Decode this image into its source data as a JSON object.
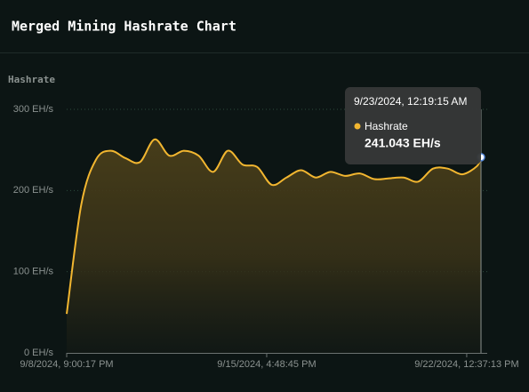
{
  "chart_data": {
    "type": "area",
    "title": "Merged Mining Hashrate Chart",
    "ylabel": "Hashrate",
    "x": [
      "2024-09-08T21:00:17",
      "2024-09-09T09:00:17",
      "2024-09-09T21:00:17",
      "2024-09-10T09:00:17",
      "2024-09-10T21:00:17",
      "2024-09-11T09:00:17",
      "2024-09-11T21:00:17",
      "2024-09-12T09:00:17",
      "2024-09-12T21:00:17",
      "2024-09-13T09:00:17",
      "2024-09-13T21:00:17",
      "2024-09-14T09:00:17",
      "2024-09-14T21:00:17",
      "2024-09-15T09:00:17",
      "2024-09-15T21:00:17",
      "2024-09-16T09:00:17",
      "2024-09-16T21:00:17",
      "2024-09-17T09:00:17",
      "2024-09-17T21:00:17",
      "2024-09-18T09:00:17",
      "2024-09-18T21:00:17",
      "2024-09-19T09:00:17",
      "2024-09-19T21:00:17",
      "2024-09-20T09:00:17",
      "2024-09-20T21:00:17",
      "2024-09-21T09:00:17",
      "2024-09-21T21:00:17",
      "2024-09-22T09:00:17",
      "2024-09-22T21:00:17",
      "2024-09-23T00:19:15"
    ],
    "series": [
      {
        "name": "Hashrate",
        "color": "#f2b630",
        "values": [
          48,
          183,
          238,
          249,
          240,
          235,
          263,
          243,
          249,
          243,
          223,
          249,
          232,
          229,
          207,
          216,
          225,
          216,
          223,
          218,
          221,
          214,
          215,
          216,
          211,
          227,
          227,
          220,
          230,
          241.043
        ]
      }
    ],
    "xlim": [
      "2024-09-08T21:00:17",
      "2024-09-23T00:19:15"
    ],
    "xticks": [
      {
        "value": "2024-09-08T21:00:17",
        "label": "9/8/2024, 9:00:17 PM"
      },
      {
        "value": "2024-09-15T16:48:45",
        "label": "9/15/2024, 4:48:45 PM"
      },
      {
        "value": "2024-09-22T12:37:13",
        "label": "9/22/2024, 12:37:13 PM"
      }
    ],
    "ylim": [
      0,
      300
    ],
    "yticks": [
      {
        "value": 0,
        "label": "0 EH/s"
      },
      {
        "value": 100,
        "label": "100 EH/s"
      },
      {
        "value": 200,
        "label": "200 EH/s"
      },
      {
        "value": 300,
        "label": "300 EH/s"
      }
    ],
    "grid": true,
    "tooltip": {
      "x_label": "9/23/2024, 12:19:15 AM",
      "value_label": "241.043 EH/s"
    }
  }
}
